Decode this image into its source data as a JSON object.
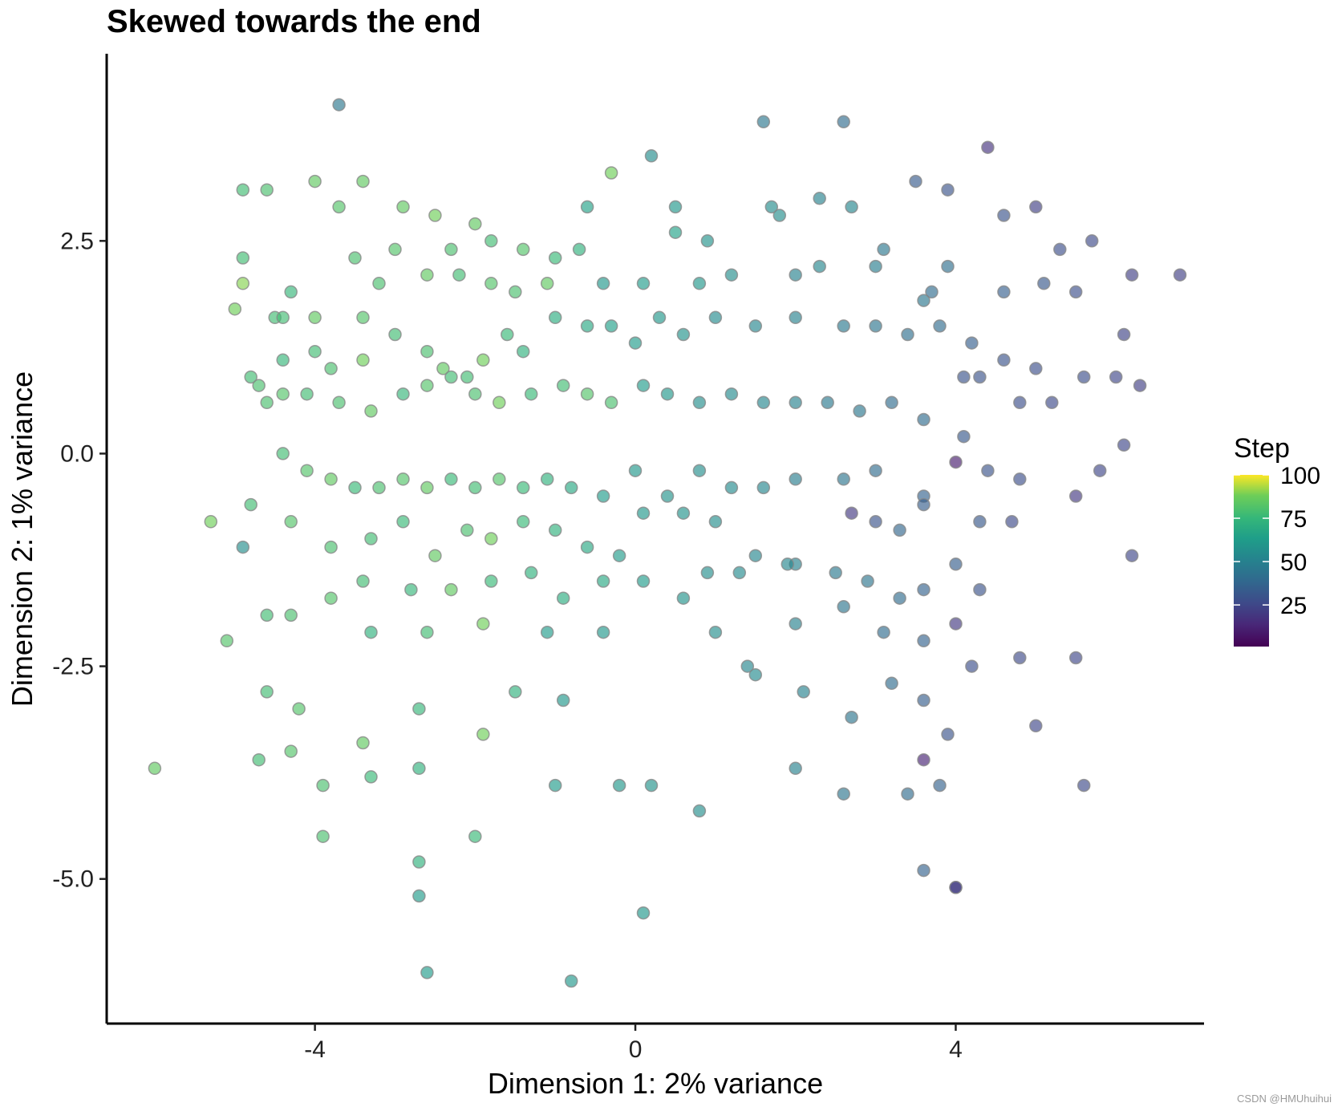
{
  "chart_data": {
    "type": "scatter",
    "title": "Skewed towards the end",
    "xlabel": "Dimension 1: 2% variance",
    "ylabel": "Dimension 2: 1% variance",
    "xlim": [
      -6.6,
      7.1
    ],
    "ylim": [
      -6.7,
      4.7
    ],
    "xticks": [
      -4,
      0,
      4
    ],
    "xtick_labels": [
      "-4",
      "0",
      "4"
    ],
    "yticks": [
      2.5,
      0.0,
      -2.5,
      -5.0
    ],
    "ytick_labels": [
      "2.5",
      "0.0",
      "-2.5",
      "-5.0"
    ],
    "grid": false,
    "legend": {
      "title": "Step",
      "placement": "right",
      "range": [
        1,
        100
      ],
      "breaks": [
        100,
        75,
        50,
        25
      ],
      "break_labels": [
        "100",
        "75",
        "50",
        "25"
      ],
      "palette": "viridis"
    },
    "point_style": {
      "alpha": 0.65,
      "edge": "#888888"
    },
    "points_columns": [
      "x",
      "y",
      "step"
    ],
    "points": [
      [
        -3.7,
        4.1,
        45
      ],
      [
        1.6,
        3.9,
        45
      ],
      [
        2.6,
        3.9,
        40
      ],
      [
        0.2,
        3.5,
        55
      ],
      [
        4.4,
        3.6,
        18
      ],
      [
        -0.3,
        3.3,
        88
      ],
      [
        -3.4,
        3.2,
        85
      ],
      [
        -4.9,
        3.1,
        78
      ],
      [
        -4.6,
        3.1,
        80
      ],
      [
        3.5,
        3.2,
        33
      ],
      [
        3.9,
        3.1,
        30
      ],
      [
        2.3,
        3.0,
        50
      ],
      [
        -4.0,
        3.2,
        85
      ],
      [
        -3.7,
        2.9,
        82
      ],
      [
        -2.9,
        2.9,
        85
      ],
      [
        -2.5,
        2.8,
        88
      ],
      [
        -2.0,
        2.7,
        85
      ],
      [
        -0.6,
        2.9,
        65
      ],
      [
        0.5,
        2.9,
        60
      ],
      [
        0.9,
        2.5,
        58
      ],
      [
        1.7,
        2.9,
        55
      ],
      [
        2.7,
        2.9,
        52
      ],
      [
        -4.9,
        2.3,
        78
      ],
      [
        -4.9,
        2.0,
        90
      ],
      [
        -5.0,
        1.7,
        88
      ],
      [
        -3.5,
        2.3,
        80
      ],
      [
        -3.0,
        2.4,
        82
      ],
      [
        -2.3,
        2.4,
        80
      ],
      [
        -1.8,
        2.5,
        78
      ],
      [
        -1.4,
        2.4,
        82
      ],
      [
        -1.0,
        2.3,
        76
      ],
      [
        -0.7,
        2.4,
        72
      ],
      [
        0.5,
        2.6,
        65
      ],
      [
        1.8,
        2.8,
        56
      ],
      [
        3.1,
        2.4,
        45
      ],
      [
        3.9,
        2.2,
        42
      ],
      [
        4.6,
        2.8,
        30
      ],
      [
        5.0,
        2.9,
        22
      ],
      [
        5.3,
        2.4,
        28
      ],
      [
        5.7,
        2.5,
        26
      ],
      [
        6.2,
        2.1,
        22
      ],
      [
        6.8,
        2.1,
        22
      ],
      [
        -4.3,
        1.9,
        75
      ],
      [
        -4.5,
        1.6,
        78
      ],
      [
        -4.4,
        1.6,
        78
      ],
      [
        -4.0,
        1.6,
        85
      ],
      [
        -3.4,
        1.6,
        82
      ],
      [
        -3.2,
        2.0,
        80
      ],
      [
        -2.6,
        2.1,
        85
      ],
      [
        -2.2,
        2.1,
        78
      ],
      [
        -1.8,
        2.0,
        82
      ],
      [
        -1.5,
        1.9,
        80
      ],
      [
        -1.1,
        2.0,
        85
      ],
      [
        -0.4,
        2.0,
        60
      ],
      [
        0.1,
        2.0,
        62
      ],
      [
        0.8,
        2.0,
        60
      ],
      [
        1.2,
        2.1,
        56
      ],
      [
        2.0,
        2.1,
        50
      ],
      [
        2.3,
        2.2,
        52
      ],
      [
        3.0,
        2.2,
        48
      ],
      [
        3.6,
        1.8,
        45
      ],
      [
        3.7,
        1.9,
        40
      ],
      [
        4.6,
        1.9,
        35
      ],
      [
        5.1,
        2.0,
        32
      ],
      [
        5.5,
        1.9,
        28
      ],
      [
        6.1,
        1.4,
        24
      ],
      [
        -4.4,
        1.1,
        75
      ],
      [
        -4.0,
        1.2,
        78
      ],
      [
        -3.8,
        1.0,
        80
      ],
      [
        -3.4,
        1.1,
        88
      ],
      [
        -3.0,
        1.4,
        78
      ],
      [
        -2.6,
        1.2,
        80
      ],
      [
        -2.4,
        1.0,
        85
      ],
      [
        -2.1,
        0.9,
        78
      ],
      [
        -1.9,
        1.1,
        88
      ],
      [
        -1.6,
        1.4,
        76
      ],
      [
        -1.4,
        1.2,
        72
      ],
      [
        -1.0,
        1.6,
        70
      ],
      [
        -0.6,
        1.5,
        68
      ],
      [
        -0.3,
        1.5,
        64
      ],
      [
        0.0,
        1.3,
        62
      ],
      [
        0.3,
        1.6,
        60
      ],
      [
        0.6,
        1.4,
        58
      ],
      [
        1.0,
        1.6,
        54
      ],
      [
        1.5,
        1.5,
        52
      ],
      [
        2.0,
        1.6,
        50
      ],
      [
        2.6,
        1.5,
        46
      ],
      [
        3.0,
        1.5,
        44
      ],
      [
        3.4,
        1.4,
        42
      ],
      [
        3.8,
        1.5,
        40
      ],
      [
        4.2,
        1.3,
        35
      ],
      [
        4.6,
        1.1,
        30
      ],
      [
        5.0,
        1.0,
        28
      ],
      [
        5.6,
        0.9,
        28
      ],
      [
        6.0,
        0.9,
        25
      ],
      [
        6.3,
        0.8,
        22
      ],
      [
        -4.8,
        0.9,
        78
      ],
      [
        -4.7,
        0.8,
        80
      ],
      [
        -4.4,
        0.7,
        82
      ],
      [
        -4.1,
        0.7,
        78
      ],
      [
        -3.7,
        0.6,
        80
      ],
      [
        -3.3,
        0.5,
        85
      ],
      [
        -2.9,
        0.7,
        75
      ],
      [
        -2.6,
        0.8,
        82
      ],
      [
        -2.3,
        0.9,
        78
      ],
      [
        -2.0,
        0.7,
        80
      ],
      [
        -1.7,
        0.6,
        88
      ],
      [
        -1.3,
        0.7,
        76
      ],
      [
        -0.9,
        0.8,
        78
      ],
      [
        -0.6,
        0.7,
        82
      ],
      [
        -0.3,
        0.6,
        80
      ],
      [
        0.1,
        0.8,
        62
      ],
      [
        0.4,
        0.7,
        60
      ],
      [
        0.8,
        0.6,
        56
      ],
      [
        1.2,
        0.7,
        54
      ],
      [
        1.6,
        0.6,
        52
      ],
      [
        2.0,
        0.6,
        50
      ],
      [
        2.4,
        0.6,
        46
      ],
      [
        2.8,
        0.5,
        45
      ],
      [
        3.2,
        0.6,
        40
      ],
      [
        3.6,
        0.4,
        40
      ],
      [
        4.1,
        0.9,
        30
      ],
      [
        4.3,
        0.9,
        30
      ],
      [
        4.8,
        0.6,
        28
      ],
      [
        5.2,
        0.6,
        26
      ],
      [
        6.1,
        0.1,
        25
      ],
      [
        -4.6,
        0.6,
        80
      ],
      [
        -4.4,
        0.0,
        78
      ],
      [
        -4.1,
        -0.2,
        82
      ],
      [
        -3.8,
        -0.3,
        85
      ],
      [
        -3.5,
        -0.4,
        76
      ],
      [
        -3.2,
        -0.4,
        80
      ],
      [
        -2.9,
        -0.3,
        82
      ],
      [
        -2.6,
        -0.4,
        85
      ],
      [
        -2.3,
        -0.3,
        76
      ],
      [
        -2.0,
        -0.4,
        78
      ],
      [
        -1.7,
        -0.3,
        82
      ],
      [
        -1.4,
        -0.4,
        76
      ],
      [
        -1.1,
        -0.3,
        72
      ],
      [
        -0.8,
        -0.4,
        68
      ],
      [
        -0.4,
        -0.5,
        62
      ],
      [
        0.0,
        -0.2,
        60
      ],
      [
        0.4,
        -0.5,
        58
      ],
      [
        0.8,
        -0.2,
        56
      ],
      [
        1.2,
        -0.4,
        54
      ],
      [
        1.6,
        -0.4,
        52
      ],
      [
        2.0,
        -0.3,
        48
      ],
      [
        2.6,
        -0.3,
        44
      ],
      [
        3.0,
        -0.2,
        40
      ],
      [
        3.6,
        -0.5,
        36
      ],
      [
        4.0,
        -0.1,
        10
      ],
      [
        4.1,
        0.2,
        32
      ],
      [
        4.4,
        -0.2,
        30
      ],
      [
        4.8,
        -0.3,
        28
      ],
      [
        5.5,
        -0.5,
        20
      ],
      [
        5.8,
        -0.2,
        25
      ],
      [
        -5.3,
        -0.8,
        88
      ],
      [
        -4.8,
        -0.6,
        78
      ],
      [
        -4.3,
        -0.8,
        82
      ],
      [
        -3.8,
        -1.1,
        80
      ],
      [
        -3.3,
        -1.0,
        78
      ],
      [
        -2.9,
        -0.8,
        76
      ],
      [
        -2.5,
        -1.2,
        85
      ],
      [
        -2.1,
        -0.9,
        80
      ],
      [
        -1.8,
        -1.0,
        88
      ],
      [
        -1.4,
        -0.8,
        76
      ],
      [
        -1.0,
        -0.9,
        72
      ],
      [
        -0.6,
        -1.1,
        68
      ],
      [
        -0.2,
        -1.2,
        62
      ],
      [
        0.1,
        -0.7,
        60
      ],
      [
        0.6,
        -0.7,
        58
      ],
      [
        1.0,
        -0.8,
        56
      ],
      [
        1.5,
        -1.2,
        52
      ],
      [
        2.0,
        -1.3,
        50
      ],
      [
        2.7,
        -0.7,
        20
      ],
      [
        3.0,
        -0.8,
        30
      ],
      [
        3.3,
        -0.9,
        38
      ],
      [
        3.6,
        -0.6,
        34
      ],
      [
        4.3,
        -0.8,
        32
      ],
      [
        4.7,
        -0.8,
        26
      ],
      [
        6.2,
        -1.2,
        25
      ],
      [
        -4.9,
        -1.1,
        56
      ],
      [
        -4.6,
        -1.9,
        78
      ],
      [
        -4.3,
        -1.9,
        80
      ],
      [
        -3.8,
        -1.7,
        82
      ],
      [
        -3.4,
        -1.5,
        78
      ],
      [
        -2.8,
        -1.6,
        75
      ],
      [
        -2.3,
        -1.6,
        85
      ],
      [
        -1.8,
        -1.5,
        76
      ],
      [
        -1.3,
        -1.4,
        72
      ],
      [
        -0.9,
        -1.7,
        70
      ],
      [
        -0.4,
        -1.5,
        68
      ],
      [
        0.1,
        -1.5,
        62
      ],
      [
        0.6,
        -1.7,
        58
      ],
      [
        0.9,
        -1.4,
        56
      ],
      [
        1.3,
        -1.4,
        54
      ],
      [
        1.9,
        -1.3,
        52
      ],
      [
        2.5,
        -1.4,
        46
      ],
      [
        2.9,
        -1.5,
        44
      ],
      [
        3.3,
        -1.7,
        40
      ],
      [
        3.6,
        -1.6,
        36
      ],
      [
        4.0,
        -1.3,
        34
      ],
      [
        4.3,
        -1.6,
        30
      ],
      [
        -5.1,
        -2.2,
        82
      ],
      [
        -3.3,
        -2.1,
        72
      ],
      [
        -2.6,
        -2.1,
        78
      ],
      [
        -1.9,
        -2.0,
        88
      ],
      [
        -1.1,
        -2.1,
        62
      ],
      [
        -0.4,
        -2.1,
        60
      ],
      [
        1.0,
        -2.1,
        56
      ],
      [
        1.4,
        -2.5,
        52
      ],
      [
        2.0,
        -2.0,
        50
      ],
      [
        2.6,
        -1.8,
        44
      ],
      [
        3.1,
        -2.1,
        40
      ],
      [
        3.6,
        -2.2,
        36
      ],
      [
        4.0,
        -2.0,
        20
      ],
      [
        4.2,
        -2.5,
        28
      ],
      [
        4.8,
        -2.4,
        26
      ],
      [
        5.5,
        -2.4,
        25
      ],
      [
        -4.6,
        -2.8,
        78
      ],
      [
        -4.2,
        -3.0,
        82
      ],
      [
        -3.4,
        -3.4,
        85
      ],
      [
        -2.7,
        -3.0,
        75
      ],
      [
        -1.9,
        -3.3,
        88
      ],
      [
        -1.5,
        -2.8,
        72
      ],
      [
        -0.9,
        -2.9,
        60
      ],
      [
        1.5,
        -2.6,
        54
      ],
      [
        2.1,
        -2.8,
        50
      ],
      [
        2.7,
        -3.1,
        44
      ],
      [
        3.2,
        -2.7,
        40
      ],
      [
        3.6,
        -2.9,
        34
      ],
      [
        3.9,
        -3.3,
        30
      ],
      [
        5.0,
        -3.2,
        25
      ],
      [
        3.6,
        -3.6,
        12
      ],
      [
        -6.0,
        -3.7,
        85
      ],
      [
        -4.7,
        -3.6,
        78
      ],
      [
        -4.3,
        -3.5,
        82
      ],
      [
        -3.9,
        -3.9,
        80
      ],
      [
        -3.3,
        -3.8,
        76
      ],
      [
        -2.7,
        -3.7,
        72
      ],
      [
        -1.0,
        -3.9,
        62
      ],
      [
        -0.2,
        -3.9,
        60
      ],
      [
        0.2,
        -3.9,
        58
      ],
      [
        0.8,
        -4.2,
        56
      ],
      [
        2.0,
        -3.7,
        50
      ],
      [
        2.6,
        -4.0,
        44
      ],
      [
        3.4,
        -4.0,
        40
      ],
      [
        3.8,
        -3.9,
        36
      ],
      [
        5.6,
        -3.9,
        26
      ],
      [
        -3.9,
        -4.5,
        80
      ],
      [
        -2.7,
        -4.8,
        72
      ],
      [
        -2.0,
        -4.5,
        76
      ],
      [
        -2.7,
        -5.2,
        62
      ],
      [
        0.1,
        -5.4,
        60
      ],
      [
        3.6,
        -4.9,
        36
      ],
      [
        4.0,
        -5.1,
        10
      ],
      [
        4.0,
        -5.1,
        25
      ],
      [
        -2.6,
        -6.1,
        62
      ],
      [
        -0.8,
        -6.2,
        60
      ]
    ],
    "extra_points_note": "",
    "watermark": "CSDN @HMUhuihui"
  }
}
